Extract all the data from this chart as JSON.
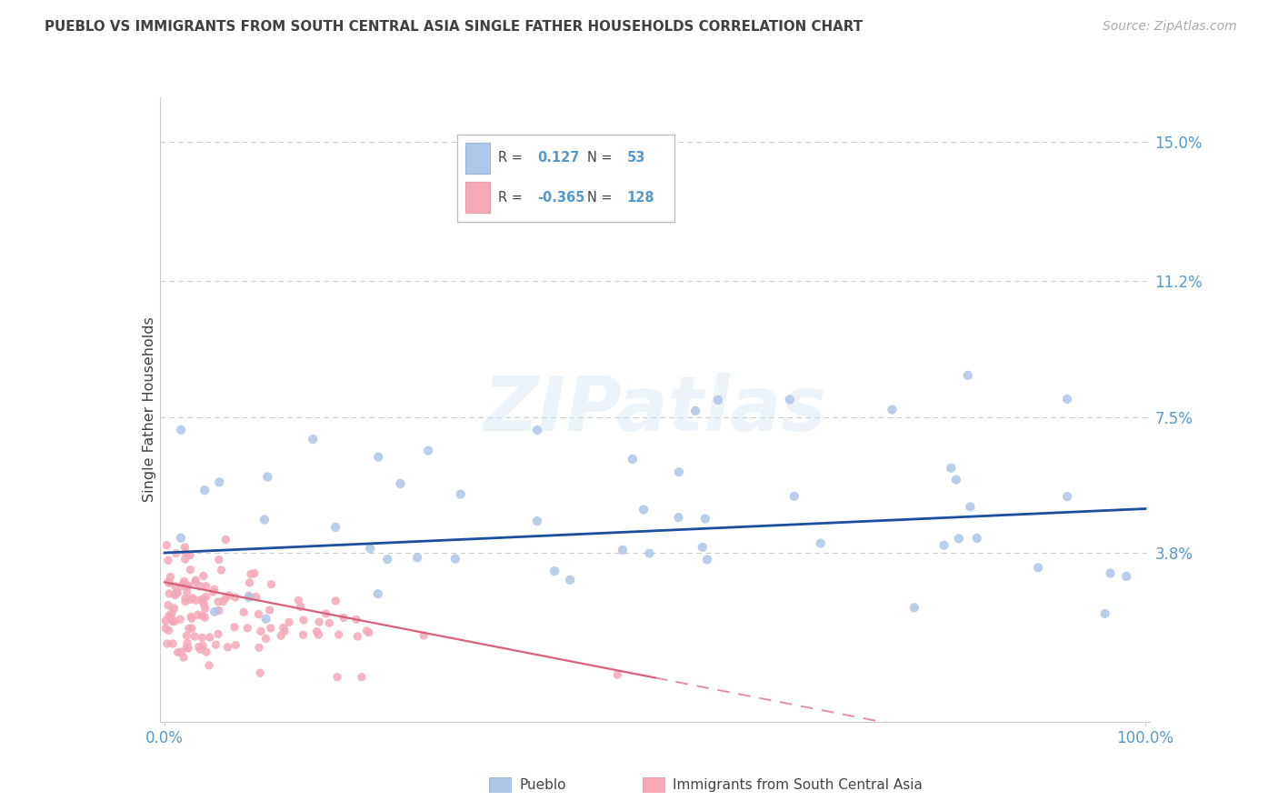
{
  "title": "PUEBLO VS IMMIGRANTS FROM SOUTH CENTRAL ASIA SINGLE FATHER HOUSEHOLDS CORRELATION CHART",
  "source": "Source: ZipAtlas.com",
  "ylabel": "Single Father Households",
  "watermark": "ZIPatlas",
  "ytick_vals": [
    0.0,
    0.038,
    0.075,
    0.112,
    0.15
  ],
  "ytick_labels": [
    "",
    "3.8%",
    "7.5%",
    "11.2%",
    "15.0%"
  ],
  "xlim": [
    -0.005,
    1.005
  ],
  "ylim": [
    -0.008,
    0.162
  ],
  "pueblo_color": "#aec6e8",
  "immigrants_color": "#f4a8b8",
  "pueblo_line_color": "#1a4fa0",
  "immigrants_line_color": "#d9607a",
  "title_color": "#404040",
  "axis_tick_color": "#5599cc",
  "grid_color": "#cccccc",
  "pueblo_R": 0.127,
  "pueblo_N": 53,
  "immigrants_R": -0.365,
  "immigrants_N": 128
}
